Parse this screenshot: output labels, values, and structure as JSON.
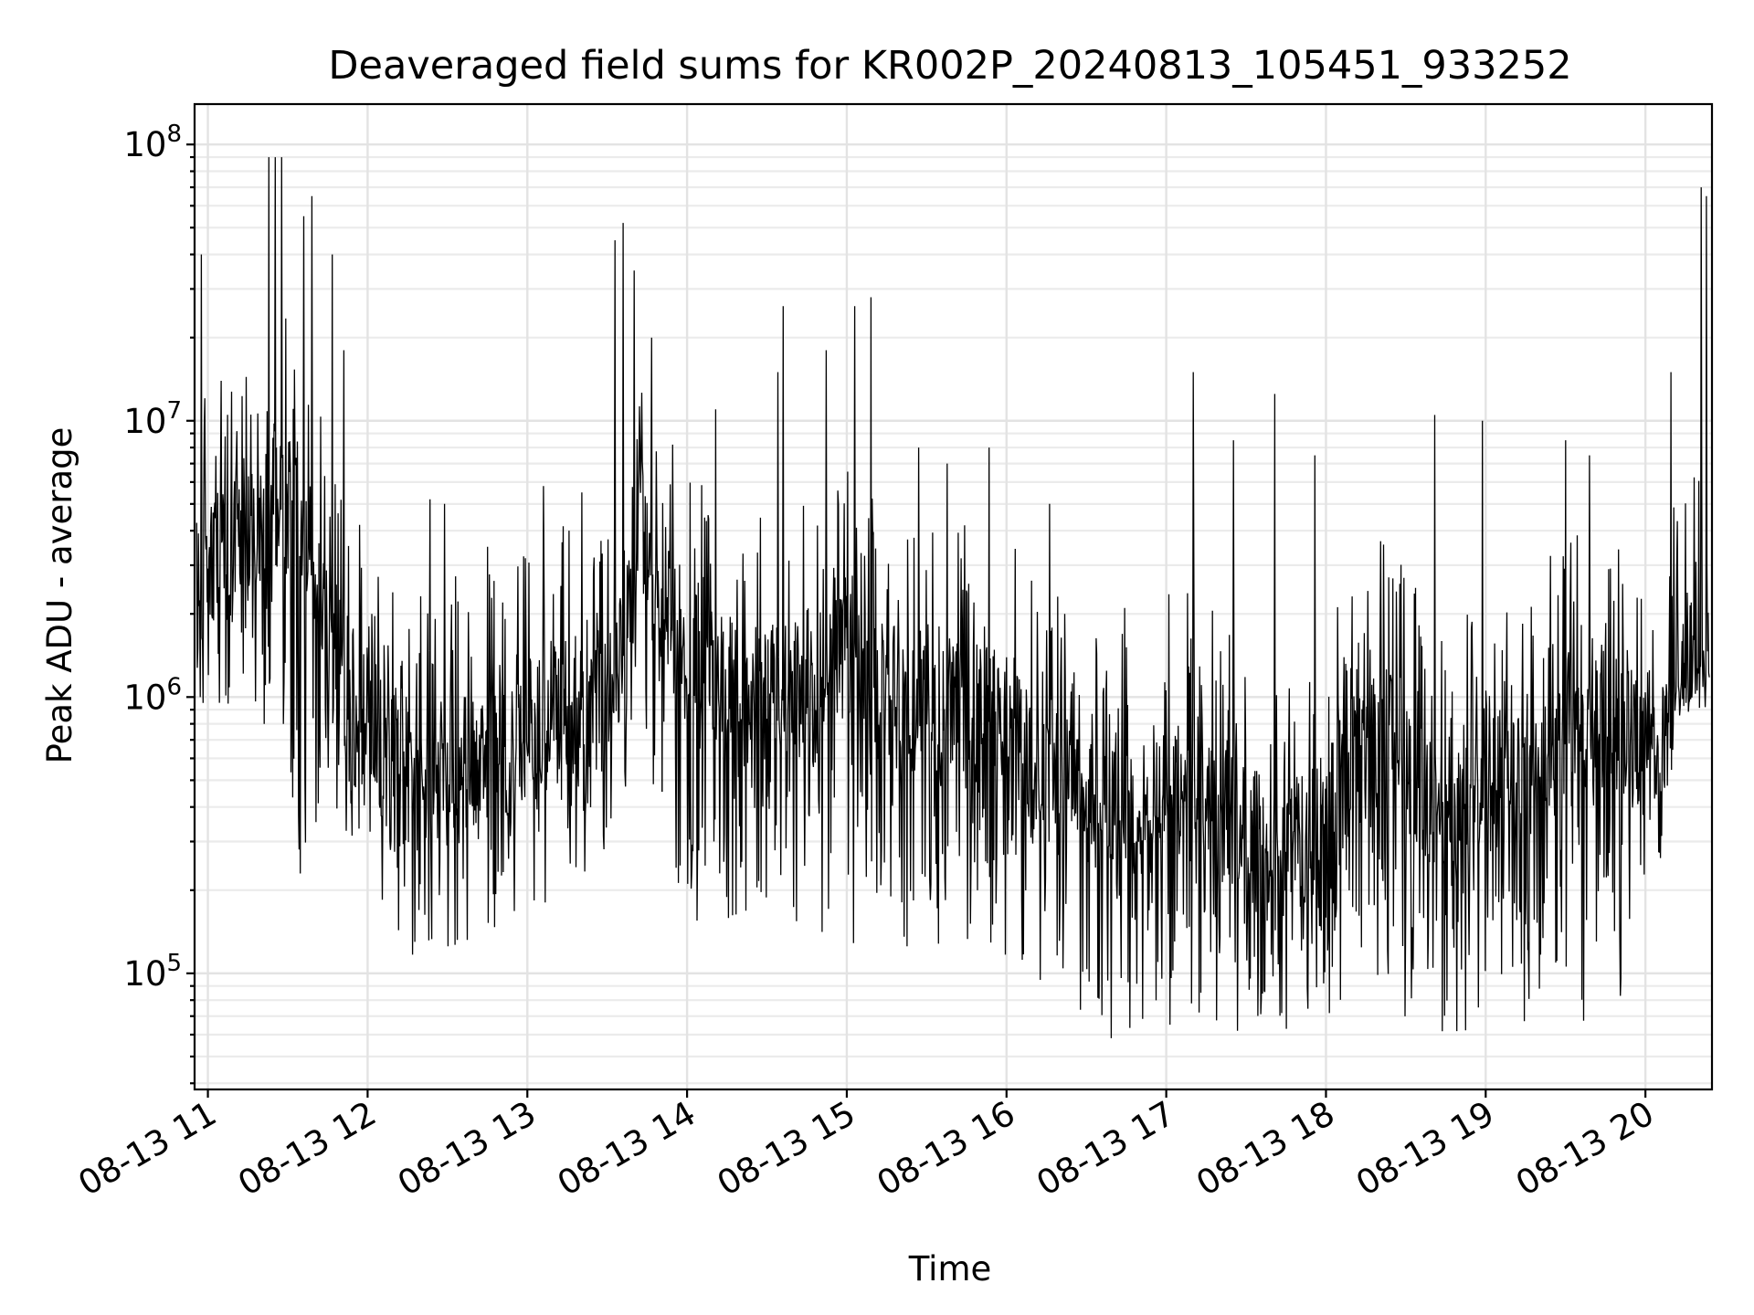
{
  "chart_data": {
    "type": "line",
    "title": "Deaveraged field sums for KR002P_20240813_105451_933252",
    "xlabel": "Time",
    "ylabel": "Peak ADU - average",
    "yscale": "log",
    "ylim": [
      38000,
      140000000
    ],
    "xlim": [
      "08-13 10:55",
      "08-13 20:25"
    ],
    "grid": true,
    "x_ticks": [
      "08-13 11",
      "08-13 12",
      "08-13 13",
      "08-13 14",
      "08-13 15",
      "08-13 16",
      "08-13 17",
      "08-13 18",
      "08-13 19",
      "08-13 20"
    ],
    "y_ticks": [
      {
        "base": "10",
        "exp": "5",
        "value": 100000
      },
      {
        "base": "10",
        "exp": "6",
        "value": 1000000
      },
      {
        "base": "10",
        "exp": "7",
        "value": 10000000
      },
      {
        "base": "10",
        "exp": "8",
        "value": 100000000
      }
    ],
    "series": [
      {
        "color": "#000000",
        "x_hours": [
          10.93,
          11.0,
          11.2,
          11.4,
          11.6,
          11.8,
          12.0,
          12.2,
          12.4,
          12.6,
          12.8,
          13.0,
          13.2,
          13.4,
          13.6,
          13.7,
          13.8,
          14.0,
          14.2,
          14.4,
          14.6,
          14.8,
          15.0,
          15.2,
          15.4,
          15.6,
          15.8,
          16.0,
          16.2,
          16.4,
          16.6,
          16.8,
          17.0,
          17.2,
          17.4,
          17.6,
          17.8,
          18.0,
          18.2,
          18.4,
          18.6,
          18.8,
          19.0,
          19.2,
          19.4,
          19.6,
          19.8,
          20.0,
          20.1,
          20.2,
          20.3,
          20.35,
          20.4
        ],
        "base": [
          1800000,
          2500000,
          3000000,
          4500000,
          4000000,
          1200000,
          700000,
          500000,
          450000,
          500000,
          500000,
          650000,
          800000,
          700000,
          1500000,
          4000000,
          2500000,
          1300000,
          1000000,
          800000,
          900000,
          900000,
          1200000,
          900000,
          750000,
          750000,
          750000,
          700000,
          450000,
          600000,
          350000,
          300000,
          450000,
          450000,
          300000,
          250000,
          250000,
          300000,
          600000,
          700000,
          400000,
          300000,
          500000,
          400000,
          600000,
          700000,
          700000,
          550000,
          450000,
          1100000,
          1200000,
          1400000,
          1300000
        ],
        "low_envelope": [
          900000,
          600000,
          500000,
          400000,
          200000,
          300000,
          200000,
          120000,
          100000,
          120000,
          130000,
          150000,
          170000,
          200000,
          300000,
          500000,
          300000,
          150000,
          80000,
          120000,
          150000,
          100000,
          90000,
          100000,
          120000,
          100000,
          120000,
          110000,
          70000,
          70000,
          55000,
          55000,
          60000,
          60000,
          55000,
          55000,
          60000,
          60000,
          60000,
          60000,
          60000,
          60000,
          55000,
          60000,
          60000,
          60000,
          60000,
          150000,
          250000,
          800000,
          900000,
          1000000,
          1100000
        ],
        "peaks": [
          {
            "x": 10.96,
            "y": 40000000
          },
          {
            "x": 11.38,
            "y": 90000000
          },
          {
            "x": 11.42,
            "y": 90000000
          },
          {
            "x": 11.46,
            "y": 90000000
          },
          {
            "x": 11.6,
            "y": 55000000
          },
          {
            "x": 11.65,
            "y": 65000000
          },
          {
            "x": 11.78,
            "y": 40000000
          },
          {
            "x": 11.85,
            "y": 18000000
          },
          {
            "x": 12.39,
            "y": 5200000
          },
          {
            "x": 12.48,
            "y": 5000000
          },
          {
            "x": 12.75,
            "y": 3500000
          },
          {
            "x": 13.1,
            "y": 5800000
          },
          {
            "x": 13.34,
            "y": 5500000
          },
          {
            "x": 13.55,
            "y": 45000000
          },
          {
            "x": 13.6,
            "y": 52000000
          },
          {
            "x": 13.67,
            "y": 35000000
          },
          {
            "x": 13.78,
            "y": 20000000
          },
          {
            "x": 14.18,
            "y": 11000000
          },
          {
            "x": 14.6,
            "y": 26000000
          },
          {
            "x": 14.57,
            "y": 15000000
          },
          {
            "x": 14.87,
            "y": 18000000
          },
          {
            "x": 15.05,
            "y": 26000000
          },
          {
            "x": 15.15,
            "y": 28000000
          },
          {
            "x": 15.45,
            "y": 8000000
          },
          {
            "x": 15.63,
            "y": 7000000
          },
          {
            "x": 15.89,
            "y": 8000000
          },
          {
            "x": 16.27,
            "y": 5000000
          },
          {
            "x": 16.74,
            "y": 2100000
          },
          {
            "x": 17.17,
            "y": 15000000
          },
          {
            "x": 17.42,
            "y": 8500000
          },
          {
            "x": 17.68,
            "y": 12500000
          },
          {
            "x": 17.93,
            "y": 7500000
          },
          {
            "x": 18.68,
            "y": 10500000
          },
          {
            "x": 18.98,
            "y": 10000000
          },
          {
            "x": 19.5,
            "y": 8500000
          },
          {
            "x": 19.65,
            "y": 7500000
          },
          {
            "x": 20.16,
            "y": 15000000
          },
          {
            "x": 20.35,
            "y": 70000000
          },
          {
            "x": 20.38,
            "y": 65000000
          }
        ]
      }
    ]
  }
}
